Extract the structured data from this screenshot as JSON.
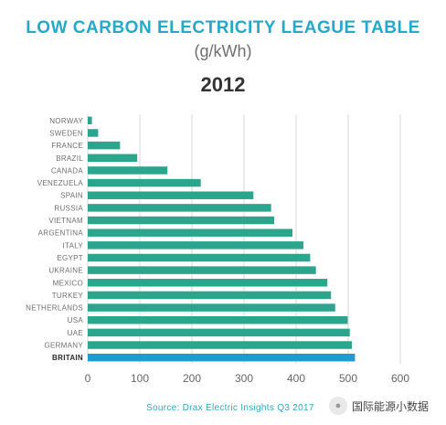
{
  "colors": {
    "bar": "#2ca58d",
    "highlight": "#1f9bd1",
    "title": "#25a8c9"
  },
  "chart_data": {
    "type": "bar",
    "orientation": "horizontal",
    "title": "LOW CARBON ELECTRICITY LEAGUE TABLE",
    "unit": "(g/kWh)",
    "year": "2012",
    "categories": [
      "NORWAY",
      "SWEDEN",
      "FRANCE",
      "BRAZIL",
      "CANADA",
      "VENEZUELA",
      "SPAIN",
      "RUSSIA",
      "VIETNAM",
      "ARGENTINA",
      "ITALY",
      "EGYPT",
      "UKRAINE",
      "MEXICO",
      "TURKEY",
      "NETHERLANDS",
      "USA",
      "UAE",
      "GERMANY",
      "BRITAIN"
    ],
    "values": [
      8,
      20,
      62,
      95,
      153,
      217,
      318,
      352,
      358,
      393,
      414,
      427,
      438,
      460,
      467,
      475,
      499,
      503,
      507,
      513
    ],
    "highlight": "BRITAIN",
    "xlim": [
      0,
      600
    ],
    "xticks": [
      0,
      100,
      200,
      300,
      400,
      500,
      600
    ],
    "grid": true,
    "source": "Source: Drax Electric Insights Q3 2017"
  },
  "watermark": {
    "text": "国际能源小数据"
  }
}
